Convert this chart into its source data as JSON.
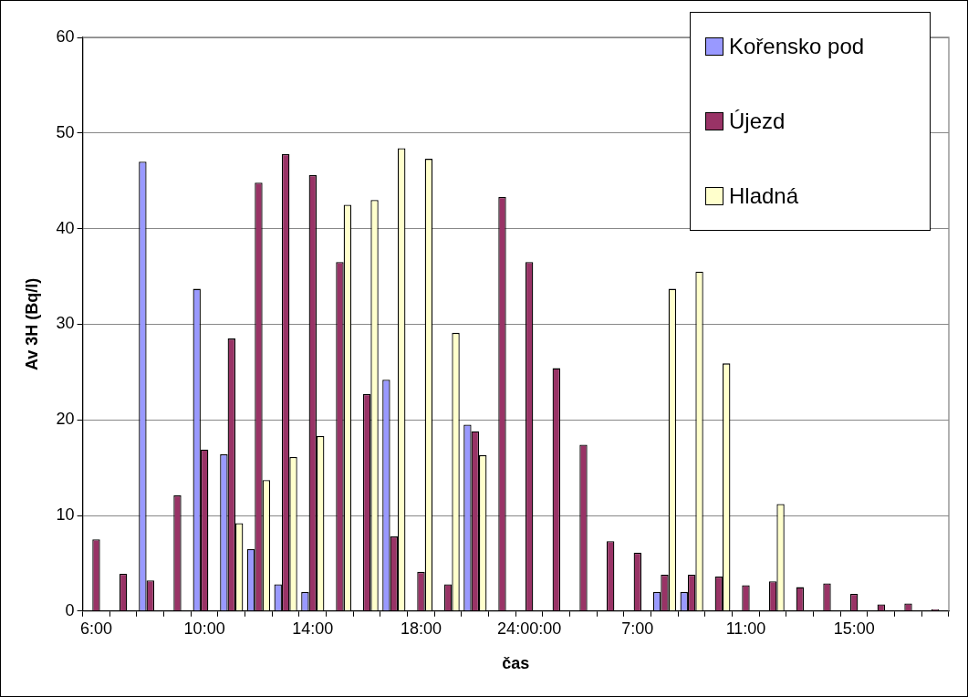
{
  "chart_data": {
    "type": "bar",
    "xlabel": "čas",
    "ylabel": "Av 3H (Bq/l)",
    "categories": [
      "6:00",
      null,
      null,
      null,
      "10:00",
      null,
      null,
      null,
      "14:00",
      null,
      null,
      null,
      "18:00",
      null,
      null,
      null,
      "24:00:00",
      null,
      null,
      null,
      "7:00",
      null,
      null,
      null,
      "11:00",
      null,
      null,
      null,
      "15:00",
      null,
      null,
      null
    ],
    "series": [
      {
        "name": "Kořensko pod",
        "color": "#9999ff",
        "values": [
          null,
          null,
          47,
          null,
          33.7,
          16.4,
          6.5,
          2.8,
          2.0,
          null,
          null,
          24.2,
          null,
          null,
          19.5,
          null,
          null,
          null,
          null,
          null,
          null,
          2.0,
          2.0,
          null,
          null,
          null,
          null,
          null,
          null,
          null,
          null,
          null
        ]
      },
      {
        "name": "Újezd",
        "color": "#993366",
        "values": [
          7.5,
          3.9,
          3.2,
          12.1,
          16.9,
          28.5,
          44.8,
          47.8,
          45.6,
          36.5,
          22.7,
          7.8,
          4.1,
          2.8,
          18.8,
          43.3,
          36.5,
          25.4,
          17.4,
          7.3,
          6.1,
          3.8,
          3.8,
          3.6,
          2.7,
          3.1,
          2.5,
          2.9,
          1.8,
          0.7,
          0.8,
          0.2
        ]
      },
      {
        "name": "Hladná",
        "color": "#ffffcc",
        "values": [
          null,
          null,
          null,
          null,
          null,
          9.2,
          13.7,
          16.1,
          18.3,
          42.5,
          43.0,
          48.4,
          47.3,
          29.1,
          16.3,
          null,
          null,
          null,
          null,
          null,
          null,
          33.7,
          35.5,
          25.9,
          null,
          11.2,
          null,
          null,
          null,
          null,
          null,
          null
        ]
      }
    ],
    "ylim": [
      0,
      60
    ],
    "yticks": [
      0,
      10,
      20,
      30,
      40,
      50,
      60
    ],
    "grid": "y",
    "legend": "top right"
  }
}
